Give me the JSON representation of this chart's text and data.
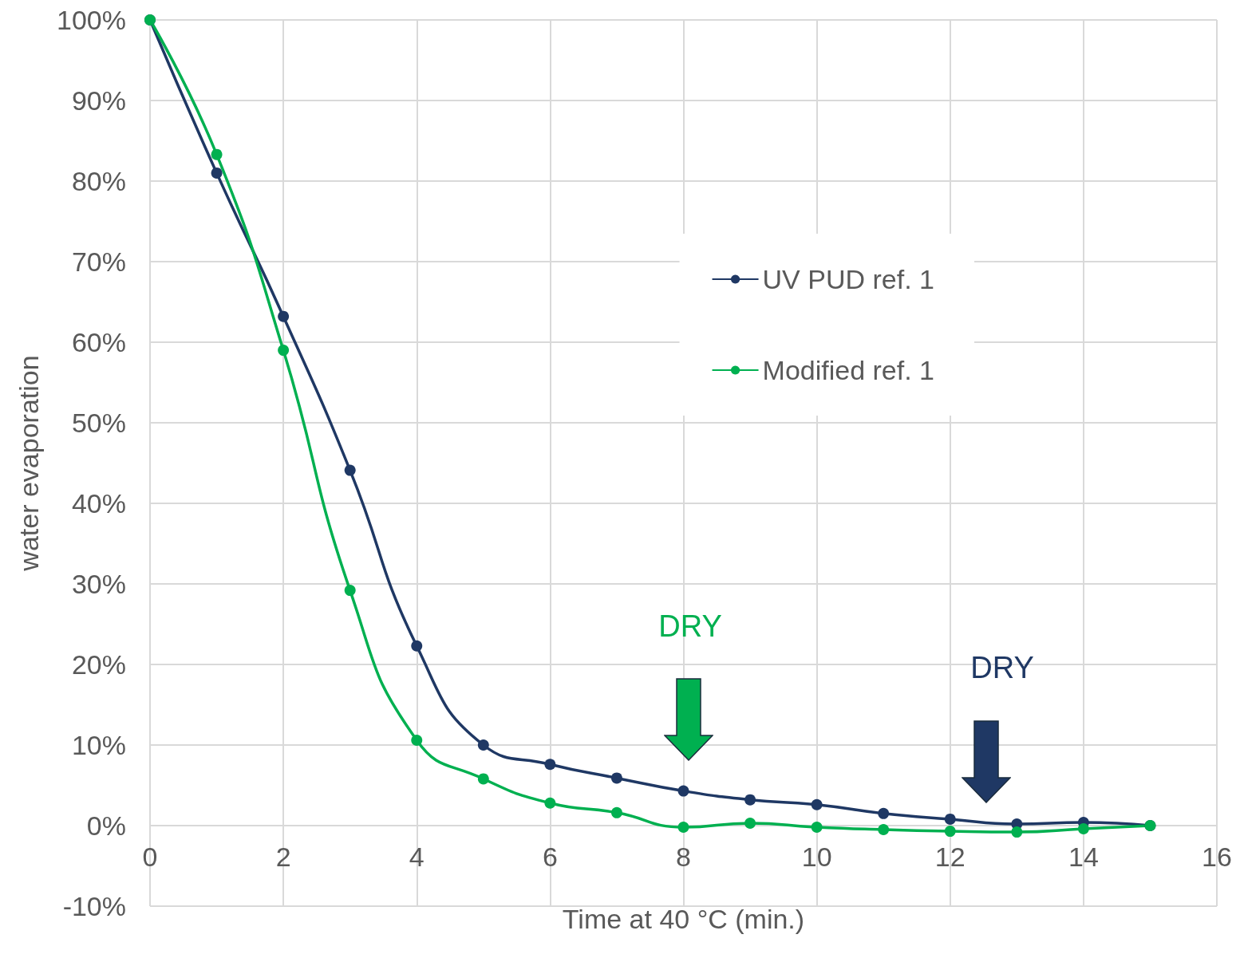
{
  "chart_data": {
    "type": "line",
    "xlabel": "Time at 40 °C (min.)",
    "ylabel": "water evaporation",
    "x": [
      0,
      1,
      2,
      3,
      4,
      5,
      6,
      7,
      8,
      9,
      10,
      11,
      12,
      13,
      14,
      15
    ],
    "series": [
      {
        "name": "UV PUD ref. 1",
        "color": "#1f3864",
        "values": [
          100,
          81.0,
          63.2,
          44.1,
          22.3,
          10.0,
          7.6,
          5.9,
          4.3,
          3.2,
          2.6,
          1.5,
          0.8,
          0.2,
          0.4,
          0
        ]
      },
      {
        "name": "Modified ref. 1",
        "color": "#00b050",
        "values": [
          100,
          83.3,
          59.0,
          29.2,
          10.6,
          5.8,
          2.8,
          1.6,
          -0.2,
          0.3,
          -0.2,
          -0.5,
          -0.7,
          -0.8,
          -0.4,
          0
        ]
      }
    ],
    "xlim": [
      0,
      16
    ],
    "xticks": [
      0,
      2,
      4,
      6,
      8,
      10,
      12,
      14,
      16
    ],
    "ylim": [
      -10,
      100
    ],
    "yticks": [
      {
        "value": -10,
        "label": "-10%"
      },
      {
        "value": 0,
        "label": "0%"
      },
      {
        "value": 10,
        "label": "10%"
      },
      {
        "value": 20,
        "label": "20%"
      },
      {
        "value": 30,
        "label": "30%"
      },
      {
        "value": 40,
        "label": "40%"
      },
      {
        "value": 50,
        "label": "50%"
      },
      {
        "value": 60,
        "label": "60%"
      },
      {
        "value": 70,
        "label": "70%"
      },
      {
        "value": 80,
        "label": "80%"
      },
      {
        "value": 90,
        "label": "90%"
      },
      {
        "value": 100,
        "label": "100%"
      }
    ],
    "annotations": [
      "DRY",
      "DRY"
    ],
    "grid": true,
    "legend": "top right",
    "marker": "circle",
    "line_style": "solid"
  }
}
